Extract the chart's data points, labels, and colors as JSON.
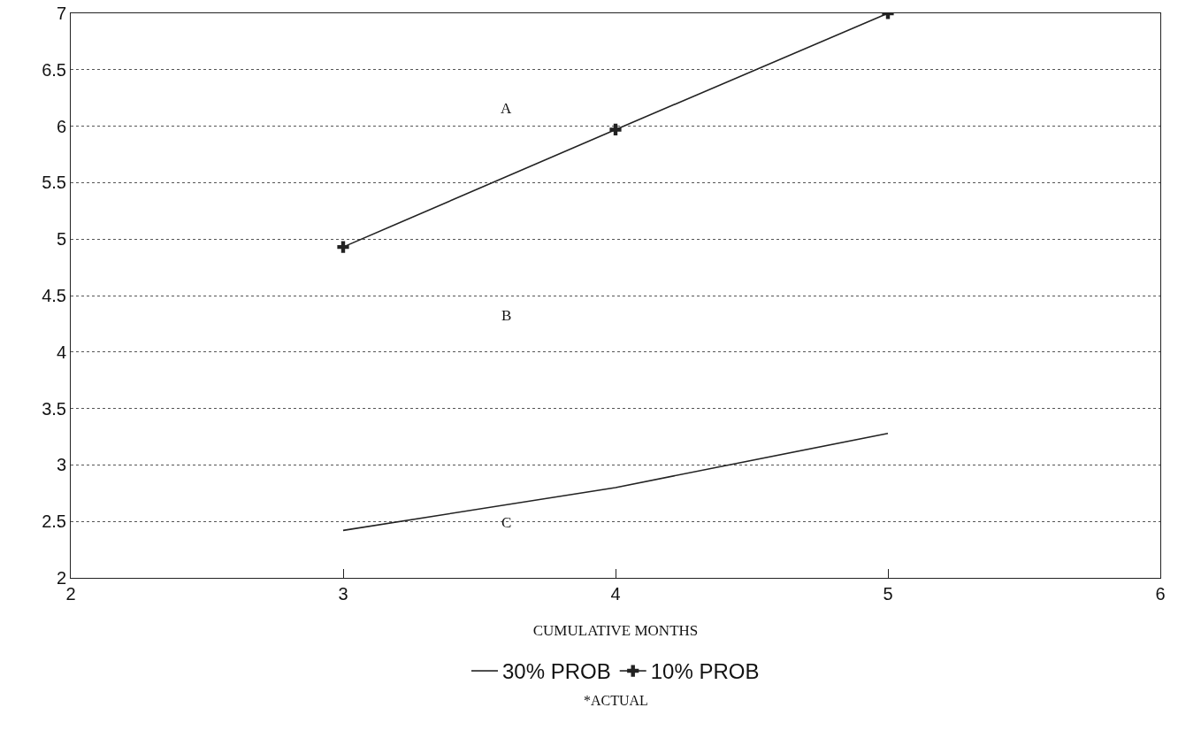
{
  "chart_data": {
    "type": "line",
    "xlabel": "CUMULATIVE MONTHS",
    "x": [
      3,
      4,
      5
    ],
    "series": [
      {
        "name": "30% PROB",
        "color": "#222222",
        "values": [
          2.42,
          2.8,
          3.28
        ],
        "marker": "none"
      },
      {
        "name": "10% PROB",
        "color": "#222222",
        "values": [
          4.93,
          5.97,
          7.0
        ],
        "marker": "cross"
      }
    ],
    "xlim": [
      2,
      6
    ],
    "xticks": [
      2,
      3,
      4,
      5,
      6
    ],
    "ylim": [
      2,
      7
    ],
    "yticks": [
      2,
      2.5,
      3,
      3.5,
      4,
      4.5,
      5,
      5.5,
      6,
      6.5,
      7
    ],
    "grid": "y",
    "legend": "bottom",
    "line_style": "solid",
    "annotations": [
      "A",
      "B",
      "C",
      "*ACTUAL"
    ]
  }
}
